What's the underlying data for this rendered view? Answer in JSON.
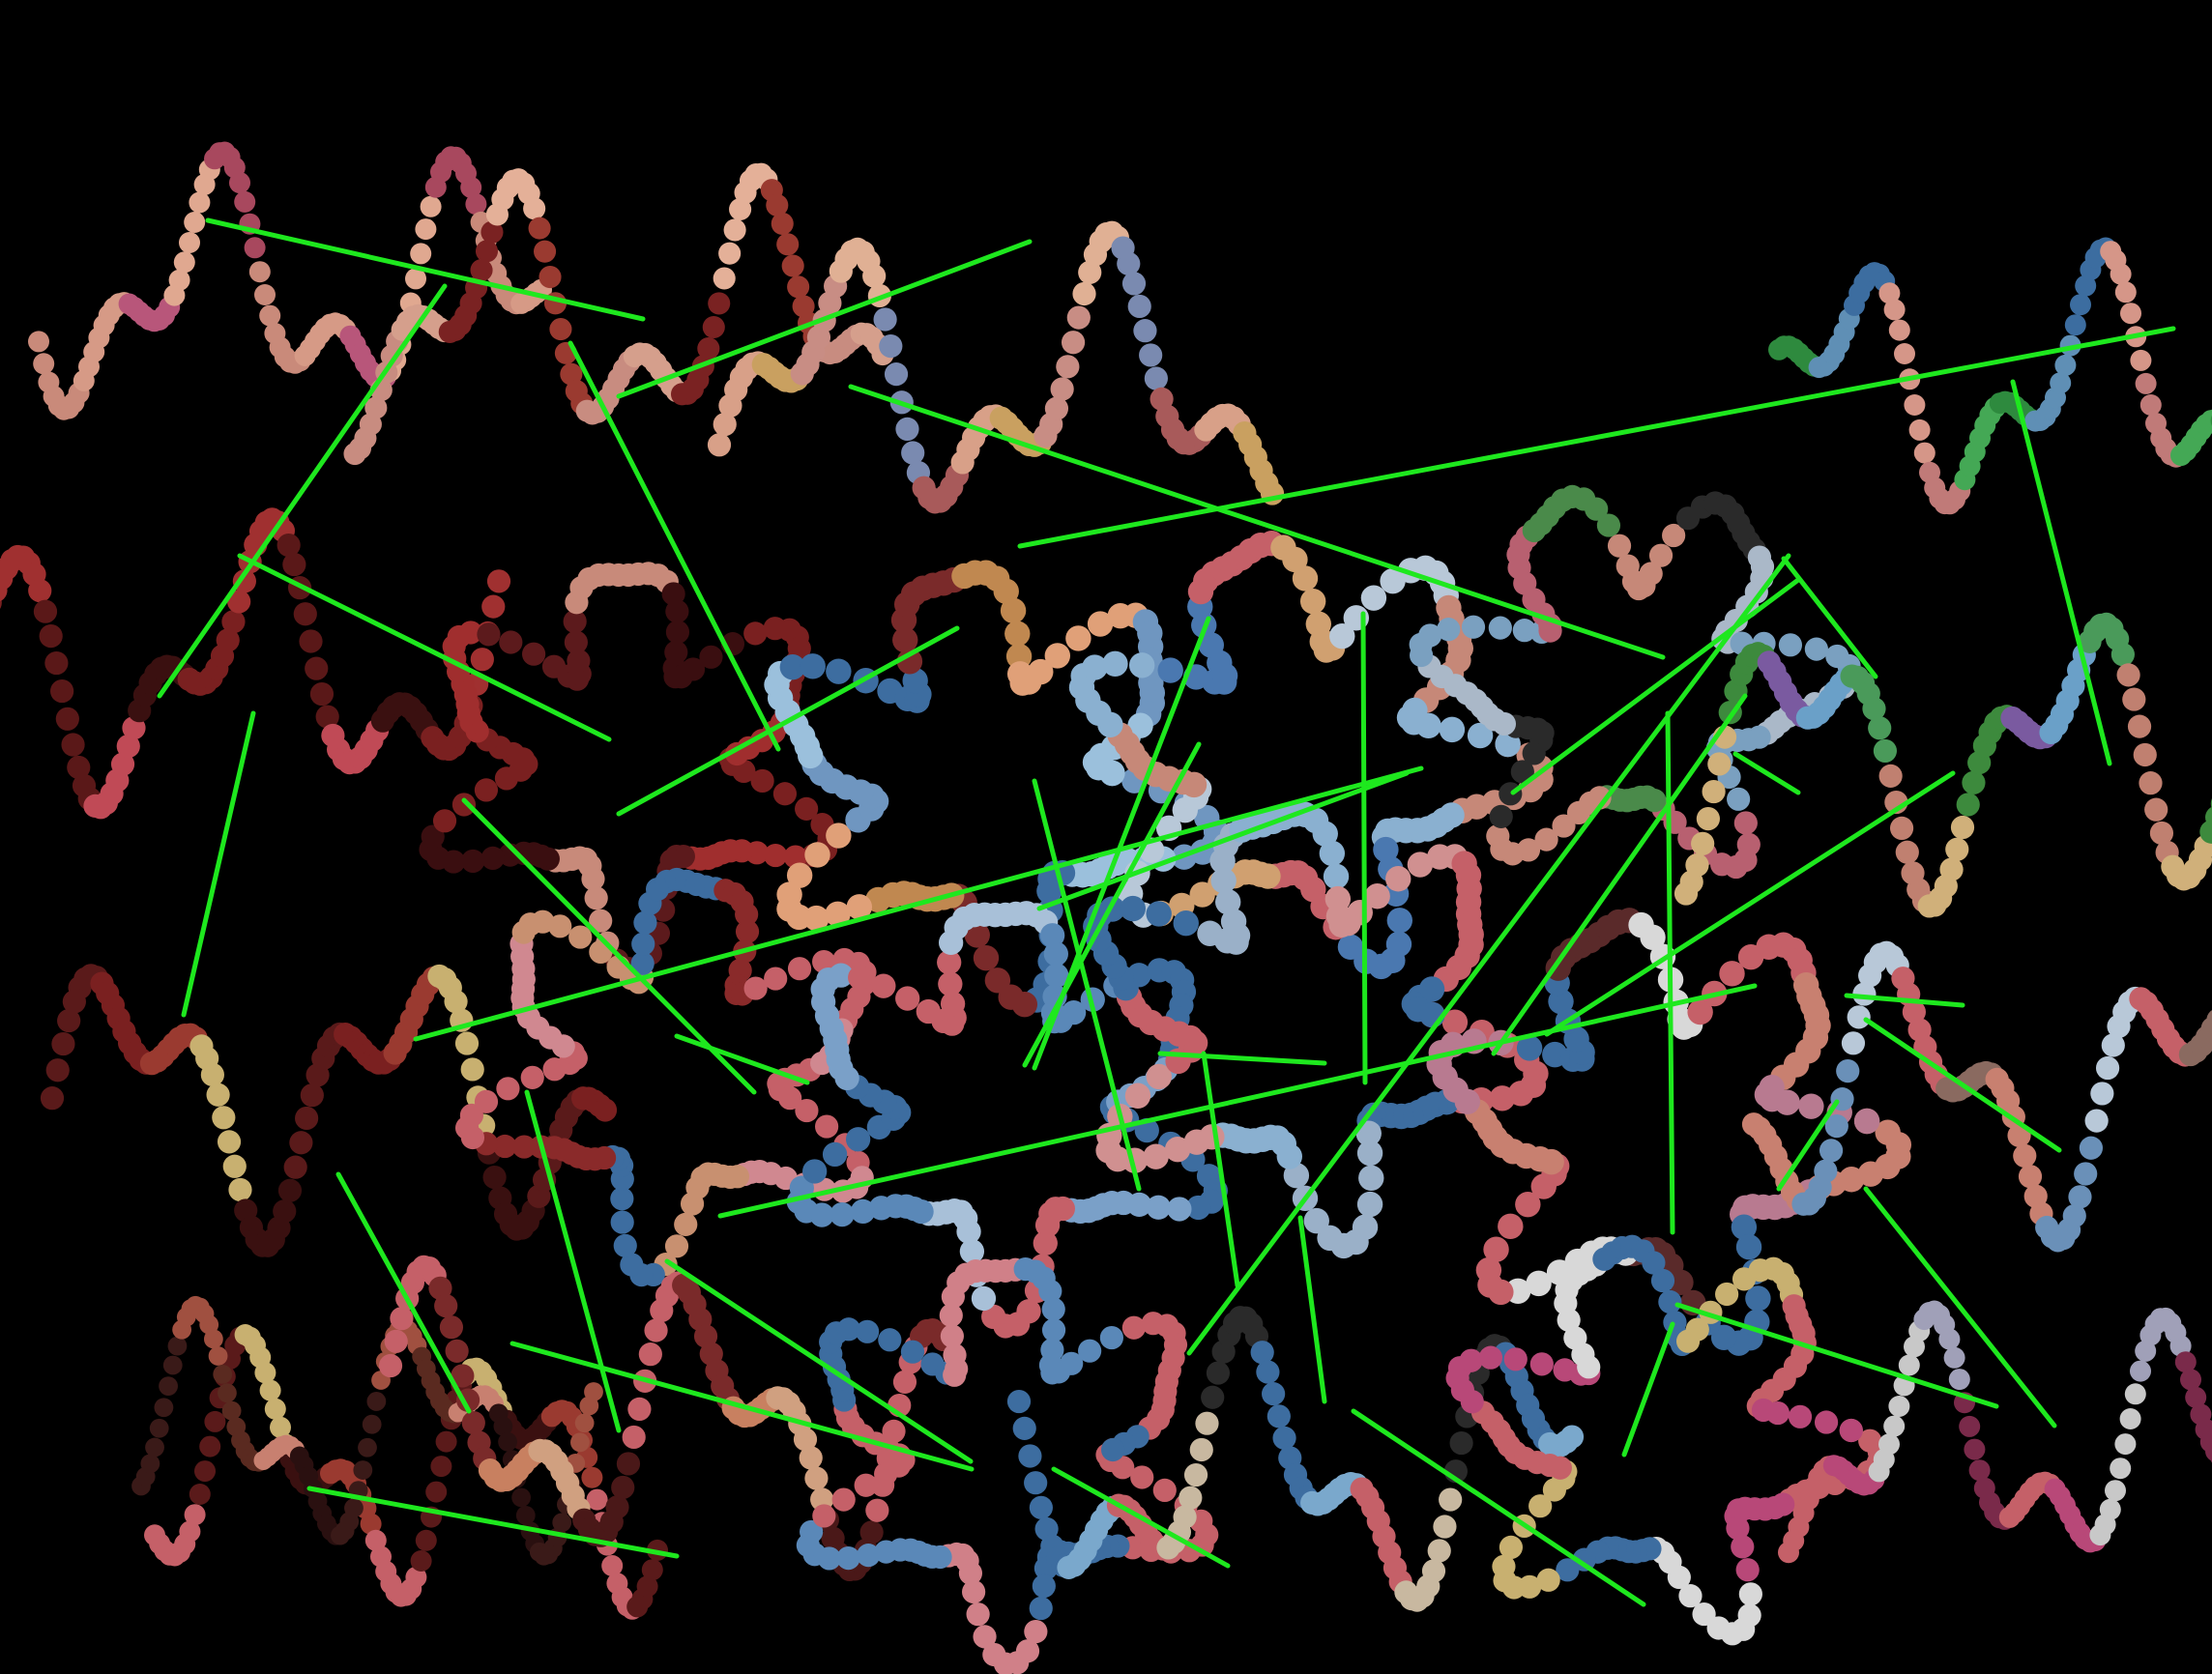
{
  "colors": {
    "background": "#000000",
    "link": "#1ee81e"
  },
  "pieces": [
    {
      "id": "p1",
      "shape": "S",
      "palette": [
        "#c98a7a",
        "#d69a86",
        "#b8567a",
        "#e0a890",
        "#a8485e"
      ]
    },
    {
      "id": "p2",
      "shape": "S",
      "palette": [
        "#c88c80",
        "#d59f8c",
        "#7a2222",
        "#e4b098",
        "#9a3a30"
      ]
    },
    {
      "id": "p3",
      "shape": "S",
      "palette": [
        "#d8a088",
        "#c9a060",
        "#c88d84",
        "#e0b094",
        "#7a8ab0",
        "#a85a5a"
      ]
    },
    {
      "id": "p4",
      "shape": "S",
      "palette": [
        "#2e8a3e",
        "#5f8fb5",
        "#3c6da0",
        "#d59688",
        "#c07a78",
        "#44a855"
      ]
    },
    {
      "id": "p5",
      "shape": "S",
      "palette": [
        "#7a2020",
        "#a03030",
        "#5a1818",
        "#c04a56",
        "#3a1010"
      ]
    },
    {
      "id": "p6",
      "shape": "S",
      "palette": [
        "#7a2020",
        "#a02e2e",
        "#5c1a1c",
        "#c88a7a",
        "#3a0e10"
      ]
    },
    {
      "id": "p7",
      "shape": "S",
      "palette": [
        "#6f96c0",
        "#9bc0dc",
        "#3d6da0",
        "#7a2a2a",
        "#c08850",
        "#e0a078"
      ]
    },
    {
      "id": "p8",
      "shape": "S",
      "palette": [
        "#c68878",
        "#8ab0d0",
        "#4a78b0",
        "#c56068",
        "#d0a070",
        "#b8c8d8"
      ]
    },
    {
      "id": "p9",
      "shape": "S",
      "palette": [
        "#aab8c8",
        "#7aa0c0",
        "#b86070",
        "#4a8a4a",
        "#c68878",
        "#2a2a2a"
      ]
    },
    {
      "id": "p10",
      "shape": "S",
      "palette": [
        "#d0b07a",
        "#3d8a3d",
        "#7a5aa0",
        "#6aa0c8",
        "#4a9a5a",
        "#c08070"
      ]
    },
    {
      "id": "p11",
      "shape": "S",
      "palette": [
        "#5a1a1a",
        "#7a2020",
        "#9a3a30",
        "#c8b070",
        "#3a1010"
      ]
    },
    {
      "id": "p12",
      "shape": "S",
      "palette": [
        "#c56068",
        "#d08890",
        "#c89070",
        "#3d6da0",
        "#8a2a2a"
      ]
    },
    {
      "id": "p13",
      "shape": "S",
      "palette": [
        "#3d6da0",
        "#7aa0c8",
        "#c56068",
        "#a8c0d8",
        "#5a88b8"
      ]
    },
    {
      "id": "p14",
      "shape": "S",
      "palette": [
        "#c56068",
        "#3d6da0",
        "#9ab0c8",
        "#8ab0d0",
        "#d09090"
      ]
    },
    {
      "id": "p15",
      "shape": "S",
      "palette": [
        "#c88070",
        "#b87a90",
        "#3d6da0",
        "#5a2a2a",
        "#d8d8d8",
        "#c56068"
      ]
    },
    {
      "id": "p16",
      "shape": "S",
      "palette": [
        "#c88070",
        "#6a90b8",
        "#b8c8d8",
        "#c56068",
        "#8a6a60"
      ]
    },
    {
      "id": "p17",
      "shape": "S",
      "palette": [
        "#c56068",
        "#5a1a1a",
        "#c8b070",
        "#3a1010",
        "#9a3a30"
      ]
    },
    {
      "id": "p18",
      "shape": "S",
      "palette": [
        "#3a1a18",
        "#a05040",
        "#5a2a20",
        "#c88070",
        "#2a1010"
      ]
    },
    {
      "id": "p19",
      "shape": "S",
      "palette": [
        "#c56068",
        "#7a2a2a",
        "#c88060",
        "#d0a080",
        "#4a1818"
      ]
    },
    {
      "id": "p20",
      "shape": "S",
      "palette": [
        "#c56068",
        "#3d6da0",
        "#d08088",
        "#5a88b8"
      ]
    },
    {
      "id": "p21",
      "shape": "S",
      "palette": [
        "#3d6da0",
        "#7aa8cc",
        "#c56068",
        "#c8b8a0",
        "#2a2a2a"
      ]
    },
    {
      "id": "p22",
      "shape": "S",
      "palette": [
        "#c56068",
        "#b84878",
        "#d8d8d8",
        "#3d6da0",
        "#c8b070"
      ]
    },
    {
      "id": "p23",
      "shape": "S",
      "palette": [
        "#c56068",
        "#b84878",
        "#c8c8c8",
        "#a0a0b8",
        "#7a2a4a"
      ]
    }
  ]
}
